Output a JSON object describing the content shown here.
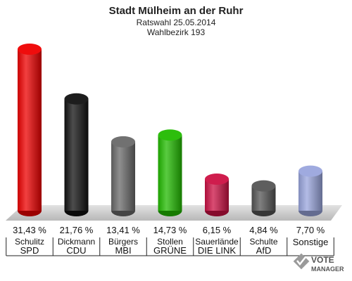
{
  "header": {
    "title": "Stadt Mülheim an der Ruhr",
    "subtitle": "Ratswahl 25.05.2014",
    "subtitle2": "Wahlbezirk 193"
  },
  "logo": {
    "line1": "VOTE",
    "line2": "MANAGER"
  },
  "chart_data": {
    "type": "bar",
    "title": "Stadt Mülheim an der Ruhr",
    "subtitle": "Ratswahl 25.05.2014 · Wahlbezirk 193",
    "categories": [
      "SPD",
      "CDU",
      "MBI",
      "GRÜNE",
      "DIE LINK",
      "AfD",
      "Sonstige"
    ],
    "candidates": [
      "Schulitz",
      "Dickmann",
      "Bürgers",
      "Stollen",
      "Sauerlände",
      "Schulte",
      ""
    ],
    "values": [
      31.43,
      21.76,
      13.41,
      14.73,
      6.15,
      4.84,
      7.7
    ],
    "value_labels": [
      "31,43 %",
      "21,76 %",
      "13,41 %",
      "14,73 %",
      "6,15 %",
      "4,84 %",
      "7,70 %"
    ],
    "colors": [
      "#ee0000",
      "#111111",
      "#6a6a6a",
      "#22bb00",
      "#cc1144",
      "#555555",
      "#9aa6dd"
    ],
    "unit": "%",
    "grid": false,
    "legend": "none"
  }
}
